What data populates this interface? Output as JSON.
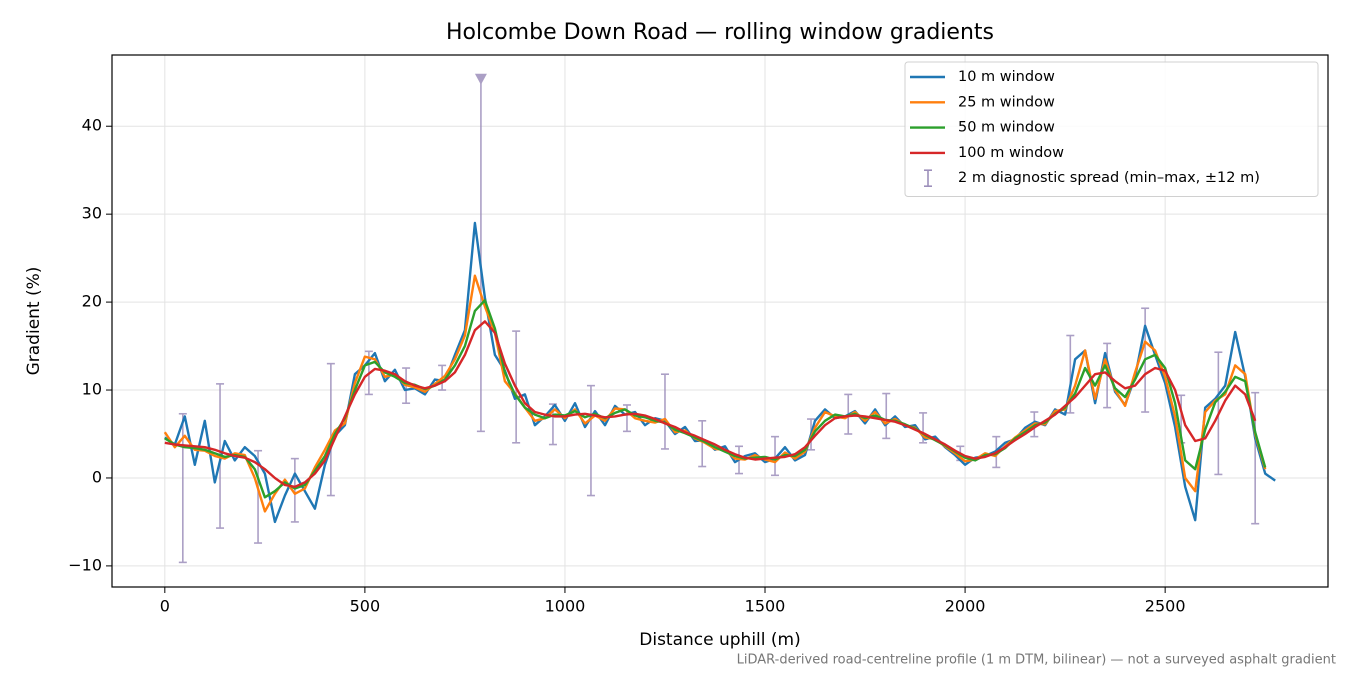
{
  "chart_data": {
    "type": "line",
    "title": "Holcombe Down Road — rolling window gradients",
    "x_label": "Distance uphill (m)",
    "y_label": "Gradient (%)",
    "footnote": "LiDAR-derived road-centreline profile (1 m DTM, bilinear) — not a surveyed asphalt gradient",
    "xlim": [
      -132,
      2907
    ],
    "ylim": [
      -12.4,
      48.1
    ],
    "xticks": [
      0,
      500,
      1000,
      1500,
      2000,
      2500
    ],
    "yticks": [
      {
        "value": -10,
        "label": "−10"
      },
      0,
      10,
      20,
      30,
      40
    ],
    "grid": true,
    "legend": "upper right",
    "x": [
      0,
      25,
      50,
      75,
      100,
      125,
      150,
      175,
      200,
      225,
      250,
      275,
      300,
      325,
      350,
      375,
      400,
      425,
      450,
      475,
      500,
      525,
      550,
      575,
      600,
      625,
      650,
      675,
      700,
      725,
      750,
      775,
      800,
      825,
      850,
      875,
      900,
      925,
      950,
      975,
      1000,
      1025,
      1050,
      1075,
      1100,
      1125,
      1150,
      1175,
      1200,
      1225,
      1250,
      1275,
      1300,
      1325,
      1350,
      1375,
      1400,
      1425,
      1450,
      1475,
      1500,
      1525,
      1550,
      1575,
      1600,
      1625,
      1650,
      1675,
      1700,
      1725,
      1750,
      1775,
      1800,
      1825,
      1850,
      1875,
      1900,
      1925,
      1950,
      1975,
      2000,
      2025,
      2050,
      2075,
      2100,
      2125,
      2150,
      2175,
      2200,
      2225,
      2250,
      2275,
      2300,
      2325,
      2350,
      2375,
      2400,
      2425,
      2450,
      2475,
      2500,
      2525,
      2550,
      2575,
      2600,
      2625,
      2650,
      2675,
      2700,
      2725,
      2750,
      2775
    ],
    "series": [
      {
        "name": "10 m window",
        "color": "#1f77b4",
        "values": [
          4.6,
          3.8,
          7,
          1.5,
          6.5,
          -0.5,
          4.2,
          2,
          3.5,
          2.5,
          0.5,
          -5,
          -2,
          0.5,
          -1.5,
          -3.5,
          1.5,
          4.8,
          6,
          11.8,
          12.8,
          14.2,
          11,
          12.3,
          10,
          10.2,
          9.5,
          11.2,
          11,
          14,
          16.8,
          29,
          20.5,
          14,
          12.2,
          9,
          9.5,
          6,
          7,
          8.3,
          6.5,
          8.5,
          5.8,
          7.6,
          6,
          8.2,
          7.2,
          7.5,
          6,
          6.8,
          6.5,
          5,
          5.8,
          4.2,
          4.3,
          3.2,
          3.6,
          1.8,
          2.5,
          2.8,
          1.8,
          2.2,
          3.5,
          2,
          2.6,
          6.5,
          7.8,
          6.8,
          7,
          7.6,
          6.2,
          7.8,
          6,
          7,
          5.8,
          6,
          4.4,
          4.7,
          3.5,
          2.6,
          1.5,
          2.3,
          2.5,
          3,
          4,
          4.4,
          5.7,
          6.4,
          6,
          7.8,
          7.2,
          13.5,
          14.5,
          8.5,
          14.2,
          9.8,
          8.3,
          11.5,
          17.3,
          14,
          10.8,
          5.8,
          -1,
          -4.8,
          8,
          9,
          10.5,
          16.6,
          11.5,
          4.5,
          0.5,
          -0.3
        ]
      },
      {
        "name": "25 m window",
        "color": "#ff7f0e",
        "values": [
          5.2,
          3.5,
          4.8,
          3.2,
          3.1,
          2.5,
          2.2,
          2.8,
          2.6,
          0,
          -3.8,
          -1.8,
          -0.2,
          -1.8,
          -1.2,
          1.2,
          3.2,
          5.4,
          6.2,
          10.8,
          13.8,
          13.5,
          11.5,
          11.8,
          10.6,
          10.3,
          9.8,
          10.7,
          11.6,
          13.5,
          16.2,
          23,
          19.5,
          16.5,
          11,
          9.6,
          8,
          6.5,
          6.8,
          7.8,
          6.8,
          7.8,
          6.2,
          7.1,
          6.5,
          7.9,
          7.8,
          6.8,
          6.5,
          6.3,
          6.7,
          5.2,
          5.4,
          4.5,
          4,
          3.3,
          3.2,
          2.2,
          2.1,
          2.6,
          2.1,
          1.8,
          2.9,
          2.2,
          3,
          5.7,
          7.5,
          7,
          6.8,
          7.5,
          6.5,
          7.5,
          6.2,
          6.7,
          6,
          5.7,
          4.6,
          4.4,
          3.6,
          2.8,
          1.9,
          2.1,
          2.8,
          2.5,
          3.6,
          4.6,
          5.4,
          6.2,
          6.1,
          7.6,
          7.8,
          10.5,
          14.5,
          9,
          13.5,
          10,
          8.2,
          12,
          15.5,
          14.5,
          11.5,
          7,
          0,
          -1.5,
          7.5,
          8.8,
          9.5,
          12.8,
          11.8,
          5,
          1,
          null
        ]
      },
      {
        "name": "50 m window",
        "color": "#2ca02c",
        "values": [
          4.5,
          3.8,
          3.5,
          3.4,
          3.2,
          2.8,
          2.4,
          2.6,
          2.4,
          1,
          -2.2,
          -1.5,
          -0.5,
          -1.2,
          -0.8,
          0.8,
          2.5,
          5,
          6.8,
          10,
          12.8,
          13.2,
          12,
          11.5,
          10.8,
          10.6,
          10.1,
          10.5,
          11.2,
          12.8,
          15,
          19,
          20.2,
          17,
          12,
          9.5,
          8,
          7.2,
          6.8,
          7.2,
          7.1,
          7.6,
          6.9,
          7.3,
          6.8,
          7.4,
          7.8,
          7.1,
          6.9,
          6.5,
          6.3,
          5.5,
          5.1,
          4.6,
          4.1,
          3.5,
          3,
          2.5,
          2.2,
          2.3,
          2.4,
          2.1,
          2.6,
          2.5,
          3.2,
          5.3,
          6.5,
          7.2,
          7,
          7.3,
          6.8,
          7.1,
          6.6,
          6.5,
          6.1,
          5.6,
          4.9,
          4.3,
          3.7,
          3,
          2.3,
          2,
          2.6,
          2.7,
          3.4,
          4.5,
          5.2,
          6,
          6.3,
          7.3,
          8,
          9.6,
          12.5,
          10.5,
          12.8,
          10.2,
          9.2,
          11.2,
          13.5,
          14,
          12.5,
          8.5,
          2,
          1,
          5.5,
          8.6,
          9.8,
          11.5,
          11,
          5.2,
          1.2,
          null
        ]
      },
      {
        "name": "100 m window",
        "color": "#d62728",
        "values": [
          4,
          3.8,
          3.7,
          3.6,
          3.5,
          3.2,
          2.8,
          2.5,
          2.3,
          1.8,
          1,
          0,
          -0.8,
          -1,
          -0.5,
          0.5,
          2,
          4.5,
          7,
          9.5,
          11.5,
          12.4,
          12.2,
          11.8,
          11,
          10.5,
          10.2,
          10.5,
          11,
          12,
          14,
          16.8,
          17.8,
          16.5,
          13,
          10.5,
          8.5,
          7.5,
          7.2,
          7,
          7,
          7.2,
          7.3,
          7.1,
          6.9,
          7,
          7.2,
          7.3,
          7.1,
          6.7,
          6.2,
          5.8,
          5.2,
          4.8,
          4.3,
          3.8,
          3.2,
          2.7,
          2.3,
          2.1,
          2.2,
          2.3,
          2.4,
          2.7,
          3.5,
          4.8,
          6,
          6.8,
          7,
          7.1,
          7,
          6.8,
          6.6,
          6.4,
          6,
          5.5,
          5,
          4.4,
          3.8,
          3.1,
          2.5,
          2.2,
          2.4,
          2.8,
          3.5,
          4.3,
          5,
          5.8,
          6.5,
          7.2,
          8.2,
          9.2,
          10.5,
          11.8,
          12,
          11,
          10.2,
          10.5,
          11.8,
          12.5,
          12.2,
          10,
          6,
          4.2,
          4.5,
          6.5,
          8.8,
          10.5,
          9.5,
          6.5,
          null,
          null
        ]
      }
    ],
    "spread": {
      "name": "2 m diagnostic spread (min–max, ±12 m)",
      "color": "#9d8fbb",
      "clip": 45.4,
      "x": [
        45,
        138,
        233,
        325,
        415,
        510,
        603,
        693,
        790,
        878,
        970,
        1065,
        1155,
        1250,
        1343,
        1435,
        1525,
        1615,
        1708,
        1803,
        1895,
        1988,
        2078,
        2173,
        2263,
        2355,
        2450,
        2540,
        2633,
        2725
      ],
      "low": [
        -9.6,
        -5.7,
        -7.4,
        -5,
        -2,
        9.5,
        8.5,
        10,
        5.3,
        4,
        3.8,
        -2,
        5.3,
        3.3,
        1.3,
        0.5,
        0.3,
        3.2,
        5,
        4.5,
        4,
        2,
        1.2,
        4.7,
        7.4,
        8,
        7.5,
        4,
        0.4,
        -5.2
      ],
      "high": [
        7.3,
        10.7,
        3.1,
        2.2,
        13,
        14.4,
        12.5,
        12.8,
        47,
        16.7,
        8.4,
        10.5,
        8.3,
        11.8,
        6.5,
        3.6,
        4.7,
        6.7,
        9.5,
        9.6,
        7.4,
        3.6,
        4.7,
        7.5,
        16.2,
        15.3,
        19.3,
        9.4,
        14.3,
        9.7
      ]
    }
  }
}
